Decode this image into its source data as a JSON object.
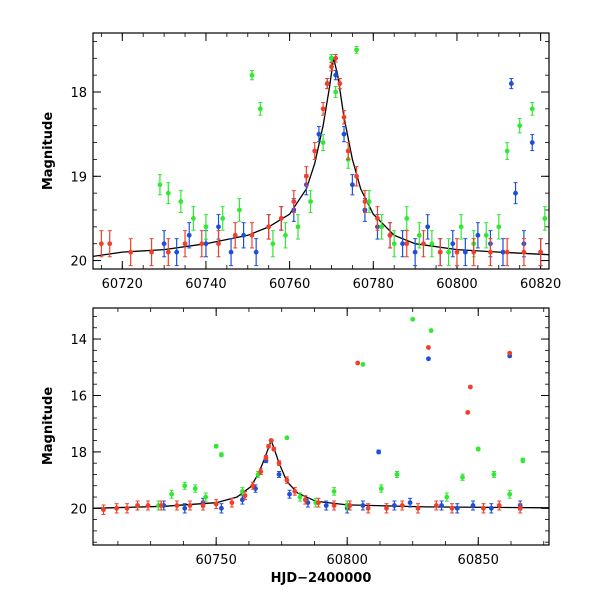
{
  "colors": {
    "blue": "#1f4fd8",
    "green": "#33e833",
    "red": "#f0402a",
    "model": "#000000"
  },
  "chart_data": [
    {
      "type": "scatter",
      "panel": "top",
      "title": "",
      "xlabel": "",
      "ylabel": "Magnitude",
      "xlim": [
        60713,
        60822
      ],
      "ylim": [
        20.1,
        17.3
      ],
      "y_inverted": true,
      "xticks": [
        60720,
        60740,
        60760,
        60780,
        60800,
        60820
      ],
      "yticks": [
        18,
        19,
        20
      ],
      "series": [
        {
          "color": "blue",
          "points": [
            [
              60730,
              19.8
            ],
            [
              60733,
              19.9
            ],
            [
              60736,
              19.7
            ],
            [
              60740,
              19.8
            ],
            [
              60743,
              19.6
            ],
            [
              60746,
              19.9
            ],
            [
              60749,
              19.7
            ],
            [
              60752,
              19.9
            ],
            [
              60755,
              19.6
            ],
            [
              60758,
              19.5
            ],
            [
              60761,
              19.4
            ],
            [
              60764,
              19.1
            ],
            [
              60767,
              18.5
            ],
            [
              60769,
              17.9
            ],
            [
              60770,
              17.6
            ],
            [
              60771,
              17.8
            ],
            [
              60773,
              18.5
            ],
            [
              60775,
              19.1
            ],
            [
              60778,
              19.4
            ],
            [
              60781,
              19.6
            ],
            [
              60784,
              19.7
            ],
            [
              60787,
              19.8
            ],
            [
              60790,
              19.9
            ],
            [
              60793,
              19.6
            ],
            [
              60796,
              19.9
            ],
            [
              60799,
              19.8
            ],
            [
              60802,
              19.9
            ],
            [
              60805,
              19.7
            ],
            [
              60808,
              19.8
            ],
            [
              60811,
              19.9
            ],
            [
              60813,
              17.9
            ],
            [
              60814,
              19.2
            ],
            [
              60816,
              19.8
            ],
            [
              60818,
              18.6
            ],
            [
              60820,
              19.9
            ]
          ]
        },
        {
          "color": "green",
          "points": [
            [
              60729,
              19.1
            ],
            [
              60731,
              19.2
            ],
            [
              60734,
              19.3
            ],
            [
              60737,
              19.5
            ],
            [
              60740,
              19.6
            ],
            [
              60744,
              19.5
            ],
            [
              60748,
              19.4
            ],
            [
              60751,
              17.8
            ],
            [
              60753,
              18.2
            ],
            [
              60756,
              19.8
            ],
            [
              60759,
              19.7
            ],
            [
              60762,
              19.6
            ],
            [
              60765,
              19.3
            ],
            [
              60768,
              18.6
            ],
            [
              60770,
              17.6
            ],
            [
              60771,
              18.0
            ],
            [
              60774,
              18.8
            ],
            [
              60776,
              17.5
            ],
            [
              60779,
              19.3
            ],
            [
              60782,
              19.6
            ],
            [
              60785,
              19.8
            ],
            [
              60788,
              19.5
            ],
            [
              60791,
              19.7
            ],
            [
              60794,
              19.8
            ],
            [
              60798,
              19.9
            ],
            [
              60801,
              19.6
            ],
            [
              60804,
              19.8
            ],
            [
              60807,
              19.7
            ],
            [
              60810,
              19.6
            ],
            [
              60812,
              18.7
            ],
            [
              60815,
              18.4
            ],
            [
              60818,
              18.2
            ],
            [
              60821,
              19.5
            ]
          ]
        },
        {
          "color": "red",
          "points": [
            [
              60715,
              19.8
            ],
            [
              60717,
              19.8
            ],
            [
              60722,
              19.9
            ],
            [
              60727,
              19.9
            ],
            [
              60731,
              19.9
            ],
            [
              60735,
              19.8
            ],
            [
              60739,
              19.8
            ],
            [
              60743,
              19.8
            ],
            [
              60747,
              19.7
            ],
            [
              60751,
              19.7
            ],
            [
              60755,
              19.6
            ],
            [
              60758,
              19.5
            ],
            [
              60761,
              19.3
            ],
            [
              60764,
              19.0
            ],
            [
              60766,
              18.7
            ],
            [
              60768,
              18.2
            ],
            [
              60769,
              17.9
            ],
            [
              60770,
              17.7
            ],
            [
              60771,
              17.6
            ],
            [
              60772,
              17.9
            ],
            [
              60773,
              18.3
            ],
            [
              60774,
              18.7
            ],
            [
              60776,
              19.0
            ],
            [
              60778,
              19.3
            ],
            [
              60781,
              19.5
            ],
            [
              60784,
              19.7
            ],
            [
              60788,
              19.8
            ],
            [
              60792,
              19.8
            ],
            [
              60796,
              19.9
            ],
            [
              60800,
              19.9
            ],
            [
              60804,
              19.9
            ],
            [
              60808,
              19.9
            ],
            [
              60812,
              19.9
            ],
            [
              60816,
              19.9
            ],
            [
              60820,
              19.9
            ]
          ]
        }
      ],
      "model": {
        "color": "model",
        "points": [
          [
            60713,
            19.95
          ],
          [
            60720,
            19.9
          ],
          [
            60730,
            19.87
          ],
          [
            60740,
            19.8
          ],
          [
            60750,
            19.7
          ],
          [
            60755,
            19.6
          ],
          [
            60760,
            19.45
          ],
          [
            60764,
            19.15
          ],
          [
            60766,
            18.85
          ],
          [
            60768,
            18.4
          ],
          [
            60769.5,
            17.95
          ],
          [
            60770.5,
            17.6
          ],
          [
            60771.5,
            17.8
          ],
          [
            60773,
            18.3
          ],
          [
            60775,
            18.8
          ],
          [
            60777,
            19.15
          ],
          [
            60780,
            19.45
          ],
          [
            60785,
            19.7
          ],
          [
            60790,
            19.8
          ],
          [
            60800,
            19.87
          ],
          [
            60810,
            19.9
          ],
          [
            60822,
            19.93
          ]
        ]
      }
    },
    {
      "type": "scatter",
      "panel": "bottom",
      "title": "",
      "xlabel": "HJD−2400000",
      "ylabel": "Magnitude",
      "xlim": [
        60703,
        60877
      ],
      "ylim": [
        21.3,
        12.9
      ],
      "y_inverted": true,
      "xticks": [
        60750,
        60800,
        60850
      ],
      "yticks": [
        14,
        16,
        18,
        20
      ],
      "series": [
        {
          "color": "blue",
          "points": [
            [
              60730,
              19.9
            ],
            [
              60738,
              20.0
            ],
            [
              60745,
              19.8
            ],
            [
              60752,
              20.0
            ],
            [
              60760,
              19.7
            ],
            [
              60765,
              19.3
            ],
            [
              60769,
              18.3
            ],
            [
              60771,
              17.6
            ],
            [
              60774,
              18.8
            ],
            [
              60778,
              19.5
            ],
            [
              60785,
              19.8
            ],
            [
              60792,
              19.9
            ],
            [
              60800,
              20.0
            ],
            [
              60806,
              19.9
            ],
            [
              60812,
              18.0
            ],
            [
              60818,
              19.9
            ],
            [
              60824,
              19.8
            ],
            [
              60831,
              14.7
            ],
            [
              60836,
              19.9
            ],
            [
              60842,
              20.0
            ],
            [
              60848,
              19.9
            ],
            [
              60855,
              20.0
            ],
            [
              60862,
              14.6
            ],
            [
              60866,
              19.9
            ]
          ]
        },
        {
          "color": "green",
          "points": [
            [
              60728,
              19.9
            ],
            [
              60733,
              19.5
            ],
            [
              60738,
              19.2
            ],
            [
              60742,
              19.3
            ],
            [
              60746,
              19.6
            ],
            [
              60750,
              17.8
            ],
            [
              60752,
              18.1
            ],
            [
              60760,
              19.4
            ],
            [
              60766,
              18.8
            ],
            [
              60771,
              17.6
            ],
            [
              60777,
              17.5
            ],
            [
              60782,
              19.6
            ],
            [
              60788,
              19.8
            ],
            [
              60795,
              19.4
            ],
            [
              60800,
              19.9
            ],
            [
              60806,
              14.9
            ],
            [
              60813,
              19.3
            ],
            [
              60819,
              18.8
            ],
            [
              60825,
              13.3
            ],
            [
              60832,
              13.7
            ],
            [
              60838,
              19.6
            ],
            [
              60844,
              18.9
            ],
            [
              60850,
              17.9
            ],
            [
              60856,
              18.8
            ],
            [
              60862,
              19.5
            ],
            [
              60867,
              18.3
            ]
          ]
        },
        {
          "color": "red",
          "points": [
            [
              60707,
              20.05
            ],
            [
              60712,
              20.0
            ],
            [
              60716,
              20.0
            ],
            [
              60720,
              19.9
            ],
            [
              60724,
              19.9
            ],
            [
              60729,
              19.9
            ],
            [
              60735,
              19.9
            ],
            [
              60740,
              19.9
            ],
            [
              60745,
              19.9
            ],
            [
              60750,
              19.85
            ],
            [
              60756,
              19.8
            ],
            [
              60761,
              19.55
            ],
            [
              60764,
              19.2
            ],
            [
              60767,
              18.7
            ],
            [
              60769,
              18.2
            ],
            [
              60770,
              17.8
            ],
            [
              60771,
              17.6
            ],
            [
              60772,
              17.9
            ],
            [
              60774,
              18.4
            ],
            [
              60777,
              19.0
            ],
            [
              60780,
              19.4
            ],
            [
              60784,
              19.7
            ],
            [
              60789,
              19.8
            ],
            [
              60795,
              19.9
            ],
            [
              60801,
              19.9
            ],
            [
              60804,
              14.85
            ],
            [
              60808,
              20.0
            ],
            [
              60815,
              20.0
            ],
            [
              60821,
              19.9
            ],
            [
              60827,
              20.0
            ],
            [
              60831,
              14.3
            ],
            [
              60834,
              19.9
            ],
            [
              60840,
              20.0
            ],
            [
              60846,
              16.6
            ],
            [
              60847,
              15.7
            ],
            [
              60852,
              20.0
            ],
            [
              60858,
              19.9
            ],
            [
              60862,
              14.5
            ],
            [
              60866,
              20.0
            ]
          ]
        }
      ],
      "model": {
        "color": "model",
        "points": [
          [
            60703,
            20.0
          ],
          [
            60730,
            19.93
          ],
          [
            60750,
            19.8
          ],
          [
            60758,
            19.6
          ],
          [
            60763,
            19.25
          ],
          [
            60766,
            18.8
          ],
          [
            60768,
            18.35
          ],
          [
            60770,
            17.85
          ],
          [
            60771,
            17.6
          ],
          [
            60772,
            17.85
          ],
          [
            60774,
            18.4
          ],
          [
            60777,
            19.05
          ],
          [
            60781,
            19.45
          ],
          [
            60788,
            19.75
          ],
          [
            60800,
            19.88
          ],
          [
            60830,
            19.95
          ],
          [
            60877,
            19.98
          ]
        ]
      }
    }
  ]
}
